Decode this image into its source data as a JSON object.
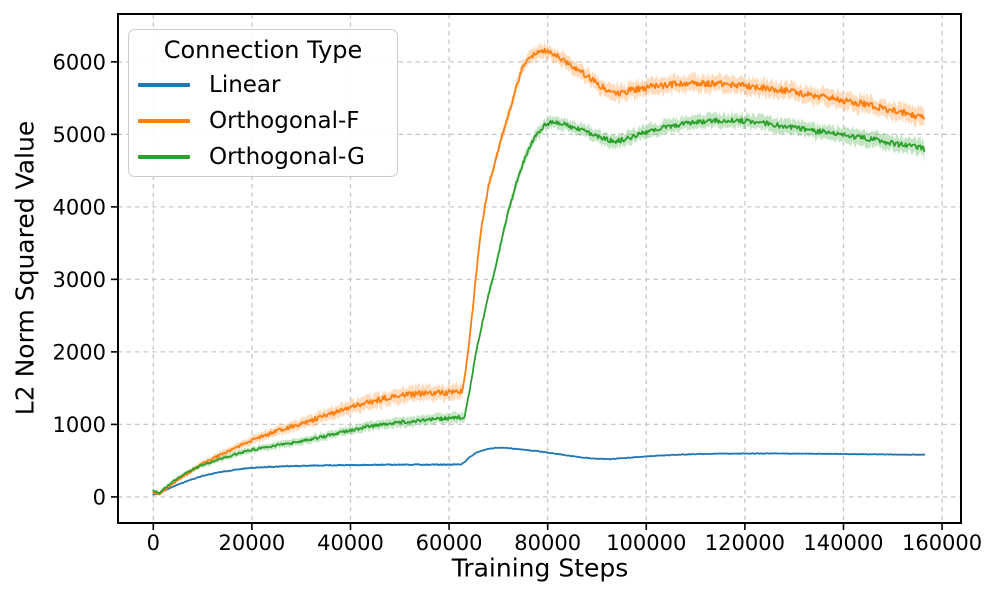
{
  "figure": {
    "background": "#ffffff",
    "text_color": "#000000",
    "grid_color": "#c8c8c8",
    "spine_color": "#000000"
  },
  "chart_data": {
    "type": "line",
    "title": "",
    "xlabel": "Training Steps",
    "ylabel": "L2 Norm Squared Value",
    "x_ticks": [
      0,
      20000,
      40000,
      60000,
      80000,
      100000,
      120000,
      140000,
      160000
    ],
    "y_ticks": [
      0,
      1000,
      2000,
      3000,
      4000,
      5000,
      6000
    ],
    "xlim": [
      -7160,
      163840
    ],
    "ylim": [
      -360,
      6660
    ],
    "x_end": 156500,
    "grid": true,
    "grid_style": "dashed",
    "legend": {
      "title": "Connection Type",
      "position": "upper left"
    },
    "series": [
      {
        "name": "Linear",
        "color": "#1f77b4",
        "seed": 11,
        "band_mult": 2.5,
        "anchors": [
          [
            0,
            30
          ],
          [
            1500,
            60
          ],
          [
            3000,
            110
          ],
          [
            5000,
            170
          ],
          [
            8000,
            245
          ],
          [
            10000,
            290
          ],
          [
            13000,
            335
          ],
          [
            16000,
            368
          ],
          [
            20000,
            400
          ],
          [
            24000,
            416
          ],
          [
            28000,
            425
          ],
          [
            32000,
            432
          ],
          [
            36000,
            436
          ],
          [
            40000,
            439
          ],
          [
            45000,
            442
          ],
          [
            50000,
            444
          ],
          [
            56000,
            445
          ],
          [
            62300,
            446
          ],
          [
            63000,
            470
          ],
          [
            64000,
            540
          ],
          [
            65500,
            610
          ],
          [
            67500,
            655
          ],
          [
            69500,
            678
          ],
          [
            71500,
            676
          ],
          [
            74000,
            660
          ],
          [
            78000,
            630
          ],
          [
            82000,
            592
          ],
          [
            86000,
            552
          ],
          [
            89500,
            527
          ],
          [
            92500,
            521
          ],
          [
            96000,
            538
          ],
          [
            100000,
            558
          ],
          [
            105000,
            578
          ],
          [
            110000,
            590
          ],
          [
            115000,
            596
          ],
          [
            125000,
            599
          ],
          [
            135000,
            595
          ],
          [
            145000,
            588
          ],
          [
            156500,
            581
          ]
        ],
        "noise": [
          [
            0,
            4
          ],
          [
            20000,
            6
          ],
          [
            62000,
            6
          ],
          [
            64000,
            4
          ],
          [
            156500,
            4
          ]
        ]
      },
      {
        "name": "Orthogonal-F",
        "color": "#ff7f0e",
        "seed": 22,
        "band_mult": 2.6,
        "anchors": [
          [
            0,
            60
          ],
          [
            1200,
            40
          ],
          [
            2500,
            110
          ],
          [
            4000,
            190
          ],
          [
            6000,
            280
          ],
          [
            8000,
            370
          ],
          [
            10000,
            460
          ],
          [
            12500,
            545
          ],
          [
            15000,
            620
          ],
          [
            17500,
            705
          ],
          [
            20000,
            780
          ],
          [
            25000,
            905
          ],
          [
            30000,
            1010
          ],
          [
            35000,
            1120
          ],
          [
            40000,
            1230
          ],
          [
            45000,
            1330
          ],
          [
            50000,
            1395
          ],
          [
            54000,
            1425
          ],
          [
            58000,
            1438
          ],
          [
            62700,
            1445
          ],
          [
            63500,
            1800
          ],
          [
            64500,
            2400
          ],
          [
            66300,
            3600
          ],
          [
            68000,
            4300
          ],
          [
            70800,
            5000
          ],
          [
            73000,
            5500
          ],
          [
            75000,
            5950
          ],
          [
            76500,
            6060
          ],
          [
            78000,
            6130
          ],
          [
            79500,
            6150
          ],
          [
            81000,
            6120
          ],
          [
            83000,
            6040
          ],
          [
            85000,
            5945
          ],
          [
            87500,
            5825
          ],
          [
            90000,
            5705
          ],
          [
            92000,
            5610
          ],
          [
            93500,
            5560
          ],
          [
            95500,
            5585
          ],
          [
            98000,
            5625
          ],
          [
            102000,
            5665
          ],
          [
            106000,
            5692
          ],
          [
            110000,
            5706
          ],
          [
            114000,
            5700
          ],
          [
            118000,
            5682
          ],
          [
            122000,
            5656
          ],
          [
            126000,
            5622
          ],
          [
            130000,
            5582
          ],
          [
            134000,
            5540
          ],
          [
            138000,
            5492
          ],
          [
            142000,
            5442
          ],
          [
            146000,
            5390
          ],
          [
            150000,
            5332
          ],
          [
            153000,
            5282
          ],
          [
            156500,
            5210
          ]
        ],
        "noise": [
          [
            0,
            8
          ],
          [
            10000,
            15
          ],
          [
            25000,
            25
          ],
          [
            45000,
            38
          ],
          [
            62500,
            38
          ],
          [
            63500,
            20
          ],
          [
            70000,
            28
          ],
          [
            80000,
            35
          ],
          [
            95000,
            42
          ],
          [
            120000,
            42
          ],
          [
            156500,
            45
          ]
        ]
      },
      {
        "name": "Orthogonal-G",
        "color": "#2ca02c",
        "seed": 33,
        "band_mult": 2.8,
        "anchors": [
          [
            0,
            90
          ],
          [
            1200,
            50
          ],
          [
            2500,
            130
          ],
          [
            4000,
            210
          ],
          [
            6000,
            300
          ],
          [
            8000,
            375
          ],
          [
            10000,
            440
          ],
          [
            12500,
            500
          ],
          [
            15000,
            555
          ],
          [
            17500,
            605
          ],
          [
            20000,
            650
          ],
          [
            25000,
            712
          ],
          [
            30000,
            765
          ],
          [
            35000,
            840
          ],
          [
            40000,
            918
          ],
          [
            45000,
            985
          ],
          [
            50000,
            1030
          ],
          [
            55000,
            1062
          ],
          [
            60000,
            1085
          ],
          [
            63100,
            1100
          ],
          [
            64000,
            1400
          ],
          [
            65500,
            2000
          ],
          [
            67500,
            2650
          ],
          [
            69700,
            3250
          ],
          [
            71500,
            3800
          ],
          [
            73500,
            4300
          ],
          [
            75500,
            4700
          ],
          [
            77500,
            4980
          ],
          [
            79500,
            5130
          ],
          [
            81000,
            5172
          ],
          [
            82500,
            5160
          ],
          [
            84500,
            5112
          ],
          [
            87000,
            5052
          ],
          [
            89500,
            4992
          ],
          [
            91500,
            4942
          ],
          [
            93500,
            4905
          ],
          [
            95500,
            4928
          ],
          [
            98000,
            4992
          ],
          [
            101000,
            5052
          ],
          [
            104000,
            5100
          ],
          [
            108000,
            5152
          ],
          [
            112000,
            5176
          ],
          [
            116000,
            5192
          ],
          [
            120000,
            5186
          ],
          [
            124000,
            5152
          ],
          [
            128000,
            5112
          ],
          [
            132000,
            5072
          ],
          [
            136000,
            5032
          ],
          [
            140000,
            4992
          ],
          [
            144000,
            4950
          ],
          [
            148000,
            4906
          ],
          [
            152000,
            4856
          ],
          [
            156500,
            4802
          ]
        ],
        "noise": [
          [
            0,
            8
          ],
          [
            10000,
            12
          ],
          [
            25000,
            16
          ],
          [
            45000,
            22
          ],
          [
            62500,
            25
          ],
          [
            63500,
            15
          ],
          [
            70000,
            22
          ],
          [
            80000,
            28
          ],
          [
            95000,
            32
          ],
          [
            120000,
            34
          ],
          [
            156500,
            38
          ]
        ]
      }
    ]
  }
}
